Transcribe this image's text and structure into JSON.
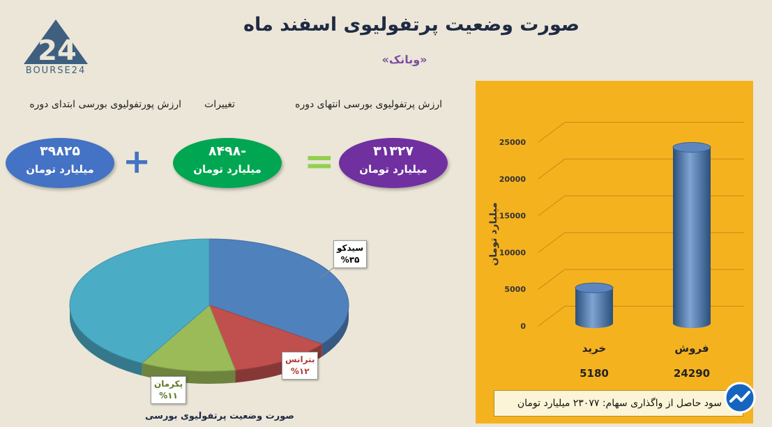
{
  "page": {
    "title": "صورت وضعیت پرتفولیوی اسفند ماه",
    "subtitle": "«وبانک»",
    "logo_text": "BOURSE24",
    "logo_mark": "24"
  },
  "equation": {
    "start": {
      "header": "ارزش پورتفولیوی بورسی ابتدای دوره",
      "value": "۳۹۸۲۵",
      "unit": "میلیارد تومان",
      "color": "#4472c4"
    },
    "plus_sign": "+",
    "change": {
      "header": "تغییرات",
      "value": "-۸۴۹۸",
      "unit": "میلیارد تومان",
      "color": "#00a651"
    },
    "equals_sign": "=",
    "end": {
      "header": "ارزش پرتفولیوی بورسی انتهای دوره",
      "value": "۳۱۳۲۷",
      "unit": "میلیارد تومان",
      "color": "#7030a0"
    }
  },
  "chart_data": [
    {
      "type": "pie",
      "title": "صورت وضعیت پرتفولیوی بورسی",
      "slices": [
        {
          "label": "سیدکو",
          "percent_label": "%۳۵",
          "value": 35,
          "color": "#4f81bd"
        },
        {
          "label": "بترانس",
          "percent_label": "%۱۲",
          "value": 12,
          "color": "#c0504d"
        },
        {
          "label": "پکرمان",
          "percent_label": "%۱۱",
          "value": 11,
          "color": "#9bbb59"
        },
        {
          "label": "",
          "percent_label": "",
          "value": 42,
          "color": "#4bacc6"
        }
      ],
      "style": "3d"
    },
    {
      "type": "bar",
      "style": "3d-cylinder",
      "categories": [
        "خرید",
        "فروش"
      ],
      "values": [
        5180,
        24290
      ],
      "value_labels": [
        "5180",
        "24290"
      ],
      "ylabel": "میلیارد تومان",
      "ylim": [
        0,
        25000
      ],
      "yticks": [
        "0",
        "5000",
        "10000",
        "15000",
        "20000",
        "25000"
      ],
      "grid": true,
      "bar_color": "#4f81bd",
      "background": "#f5b21f"
    }
  ],
  "summary": {
    "text": "سود حاصل از واگذاری سهام: ۲۳۰۷۷ میلیارد تومان"
  }
}
